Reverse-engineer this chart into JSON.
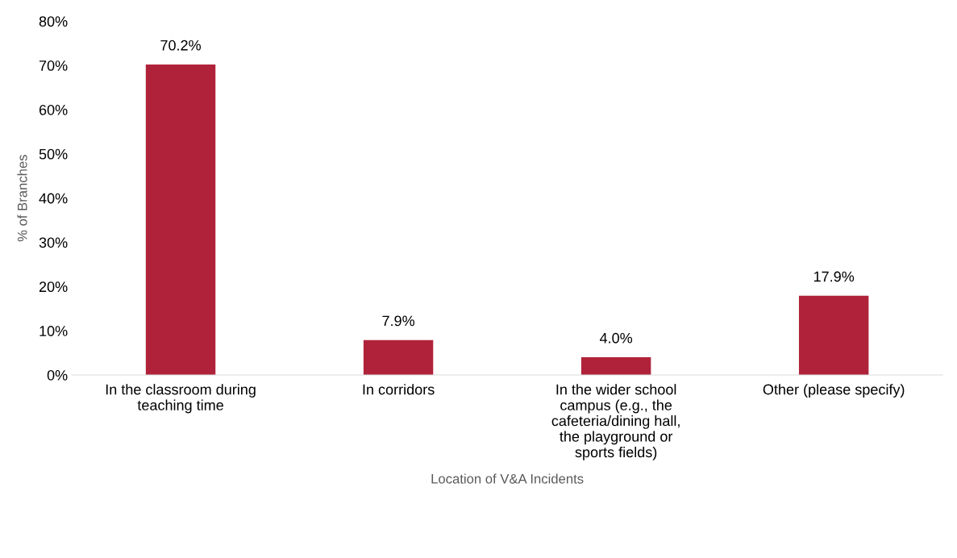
{
  "chart_data": {
    "type": "bar",
    "categories": [
      "In the classroom during\nteaching time",
      "In corridors",
      "In the wider school\ncampus (e.g., the\ncafeteria/dining hall,\nthe playground or\nsports fields)",
      "Other (please specify)"
    ],
    "values": [
      70.2,
      7.9,
      4.0,
      17.9
    ],
    "color": "#b0223a",
    "value_labels": [
      "70.2%",
      "7.9%",
      "4.0%",
      "17.9%"
    ],
    "xlabel": "Location of V&A Incidents",
    "ylabel": "% of Branches",
    "ylim": [
      0,
      80
    ],
    "yticks": [
      {
        "value": 0,
        "label": "0%"
      },
      {
        "value": 10,
        "label": "10%"
      },
      {
        "value": 20,
        "label": "20%"
      },
      {
        "value": 30,
        "label": "30%"
      },
      {
        "value": 40,
        "label": "40%"
      },
      {
        "value": 50,
        "label": "50%"
      },
      {
        "value": 60,
        "label": "60%"
      },
      {
        "value": 70,
        "label": "70%"
      },
      {
        "value": 80,
        "label": "80%"
      }
    ],
    "grid": false,
    "legend": false
  }
}
